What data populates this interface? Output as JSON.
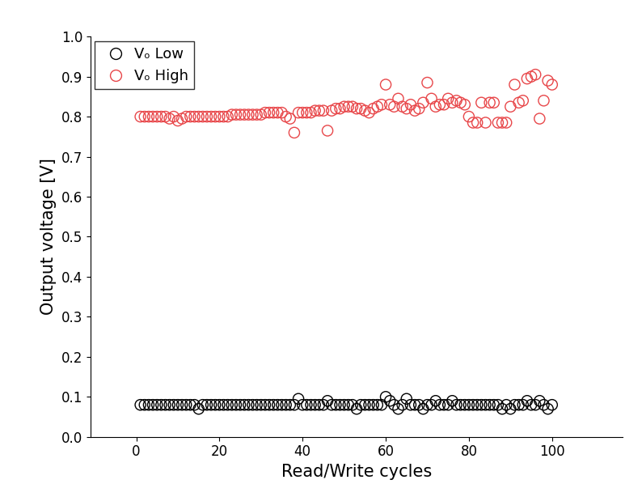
{
  "chart_data": {
    "type": "scatter",
    "x_label": "Read/Write cycles",
    "y_label": "Output voltage [V]",
    "x": [
      1,
      2,
      3,
      4,
      5,
      6,
      7,
      8,
      9,
      10,
      11,
      12,
      13,
      14,
      15,
      16,
      17,
      18,
      19,
      20,
      21,
      22,
      23,
      24,
      25,
      26,
      27,
      28,
      29,
      30,
      31,
      32,
      33,
      34,
      35,
      36,
      37,
      38,
      39,
      40,
      41,
      42,
      43,
      44,
      45,
      46,
      47,
      48,
      49,
      50,
      51,
      52,
      53,
      54,
      55,
      56,
      57,
      58,
      59,
      60,
      61,
      62,
      63,
      64,
      65,
      66,
      67,
      68,
      69,
      70,
      71,
      72,
      73,
      74,
      75,
      76,
      77,
      78,
      79,
      80,
      81,
      82,
      83,
      84,
      85,
      86,
      87,
      88,
      89,
      90,
      91,
      92,
      93,
      94,
      95,
      96,
      97,
      98,
      99,
      100
    ],
    "series": [
      {
        "name": "Vₒ Low",
        "color": "#000000",
        "marker": "o",
        "values": [
          0.08,
          0.08,
          0.08,
          0.08,
          0.08,
          0.08,
          0.08,
          0.08,
          0.08,
          0.08,
          0.08,
          0.08,
          0.08,
          0.08,
          0.07,
          0.08,
          0.08,
          0.08,
          0.08,
          0.08,
          0.08,
          0.08,
          0.08,
          0.08,
          0.08,
          0.08,
          0.08,
          0.08,
          0.08,
          0.08,
          0.08,
          0.08,
          0.08,
          0.08,
          0.08,
          0.08,
          0.08,
          0.08,
          0.095,
          0.08,
          0.08,
          0.08,
          0.08,
          0.08,
          0.08,
          0.09,
          0.08,
          0.08,
          0.08,
          0.08,
          0.08,
          0.08,
          0.07,
          0.08,
          0.08,
          0.08,
          0.08,
          0.08,
          0.08,
          0.1,
          0.09,
          0.08,
          0.07,
          0.08,
          0.095,
          0.08,
          0.08,
          0.08,
          0.07,
          0.08,
          0.08,
          0.09,
          0.08,
          0.08,
          0.08,
          0.09,
          0.08,
          0.08,
          0.08,
          0.08,
          0.08,
          0.08,
          0.08,
          0.08,
          0.08,
          0.08,
          0.08,
          0.07,
          0.08,
          0.07,
          0.08,
          0.08,
          0.08,
          0.09,
          0.08,
          0.08,
          0.09,
          0.08,
          0.07,
          0.08
        ]
      },
      {
        "name": "Vₒ High",
        "color": "#e8474a",
        "marker": "o",
        "values": [
          0.8,
          0.8,
          0.8,
          0.8,
          0.8,
          0.8,
          0.8,
          0.795,
          0.8,
          0.79,
          0.795,
          0.8,
          0.8,
          0.8,
          0.8,
          0.8,
          0.8,
          0.8,
          0.8,
          0.8,
          0.8,
          0.8,
          0.805,
          0.805,
          0.805,
          0.805,
          0.805,
          0.805,
          0.805,
          0.805,
          0.81,
          0.81,
          0.81,
          0.81,
          0.81,
          0.8,
          0.795,
          0.76,
          0.81,
          0.81,
          0.81,
          0.81,
          0.815,
          0.815,
          0.815,
          0.765,
          0.815,
          0.82,
          0.82,
          0.825,
          0.825,
          0.825,
          0.82,
          0.82,
          0.815,
          0.81,
          0.82,
          0.825,
          0.83,
          0.88,
          0.83,
          0.825,
          0.845,
          0.825,
          0.82,
          0.83,
          0.815,
          0.82,
          0.835,
          0.885,
          0.845,
          0.825,
          0.83,
          0.83,
          0.845,
          0.835,
          0.84,
          0.835,
          0.83,
          0.8,
          0.785,
          0.785,
          0.835,
          0.785,
          0.835,
          0.835,
          0.785,
          0.785,
          0.785,
          0.825,
          0.88,
          0.835,
          0.84,
          0.895,
          0.9,
          0.905,
          0.795,
          0.84,
          0.89,
          0.88
        ]
      }
    ],
    "xlim": [
      -11,
      117
    ],
    "xticks": [
      0,
      20,
      40,
      60,
      80,
      100
    ],
    "ylim": [
      0.0,
      1.0
    ],
    "yticks": [
      0.0,
      0.1,
      0.2,
      0.3,
      0.4,
      0.5,
      0.6,
      0.7,
      0.8,
      0.9,
      1.0
    ],
    "legend": "upper left"
  }
}
